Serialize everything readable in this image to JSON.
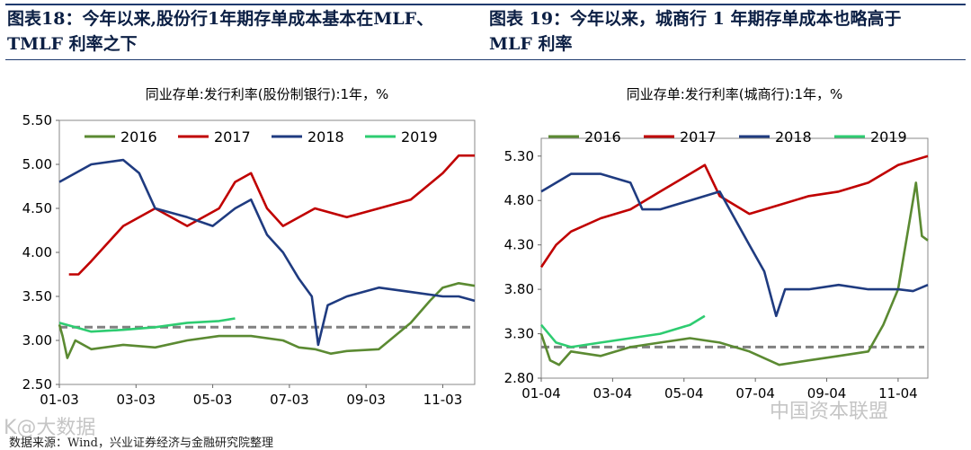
{
  "titles": {
    "left_line1": "图表18：今年以来,股份行1年期存单成本基本在MLF、",
    "left_line2": "TMLF 利率之下",
    "right_line1": "图表 19：今年以来，城商行 1 年期存单成本也略高于",
    "right_line2": "MLF 利率"
  },
  "source": "数据来源：Wind，兴业证券经济与金融研究院整理",
  "watermarks": {
    "left": "K@大数据",
    "right": "中国资本联盟"
  },
  "colors": {
    "s2016": "#5b8a32",
    "s2017": "#c00000",
    "s2018": "#1f3b80",
    "s2019": "#2ecc71",
    "ref": "#808080",
    "rule": "#1f3a6e"
  },
  "chart_data": [
    {
      "type": "line",
      "title": "同业存单:发行利率(股份制银行):1年，%",
      "xlabels": [
        "01-03",
        "03-03",
        "05-03",
        "07-03",
        "09-03",
        "11-03"
      ],
      "ylim": [
        2.5,
        5.5
      ],
      "yticks": [
        2.5,
        3.0,
        3.5,
        4.0,
        4.5,
        5.0,
        5.5
      ],
      "ytick_labels": [
        "2.50",
        "3.00",
        "3.50",
        "4.00",
        "4.50",
        "5.00",
        "5.50"
      ],
      "reference_line": 3.15,
      "legend_position": "top",
      "series": [
        {
          "name": "2016",
          "color": "#5b8a32",
          "points": [
            [
              0,
              3.18
            ],
            [
              0.1,
              3.05
            ],
            [
              0.25,
              2.8
            ],
            [
              0.5,
              3.0
            ],
            [
              1,
              2.9
            ],
            [
              2,
              2.95
            ],
            [
              3,
              2.92
            ],
            [
              4,
              3.0
            ],
            [
              5,
              3.05
            ],
            [
              6,
              3.05
            ],
            [
              7,
              3.0
            ],
            [
              7.5,
              2.92
            ],
            [
              8,
              2.9
            ],
            [
              8.5,
              2.85
            ],
            [
              9,
              2.88
            ],
            [
              10,
              2.9
            ],
            [
              11,
              3.2
            ],
            [
              11.6,
              3.45
            ],
            [
              12,
              3.6
            ],
            [
              12.5,
              3.65
            ],
            [
              13,
              3.62
            ]
          ]
        },
        {
          "name": "2017",
          "color": "#c00000",
          "points": [
            [
              0.3,
              3.75
            ],
            [
              0.6,
              3.75
            ],
            [
              1,
              3.9
            ],
            [
              2,
              4.3
            ],
            [
              3,
              4.5
            ],
            [
              4,
              4.3
            ],
            [
              5,
              4.5
            ],
            [
              5.5,
              4.8
            ],
            [
              6,
              4.9
            ],
            [
              6.5,
              4.5
            ],
            [
              7,
              4.3
            ],
            [
              8,
              4.5
            ],
            [
              9,
              4.4
            ],
            [
              10,
              4.5
            ],
            [
              11,
              4.6
            ],
            [
              12,
              4.9
            ],
            [
              12.5,
              5.1
            ],
            [
              13,
              5.1
            ]
          ]
        },
        {
          "name": "2018",
          "color": "#1f3b80",
          "points": [
            [
              0,
              4.8
            ],
            [
              1,
              5.0
            ],
            [
              2,
              5.05
            ],
            [
              2.5,
              4.9
            ],
            [
              3,
              4.5
            ],
            [
              4,
              4.4
            ],
            [
              4.8,
              4.3
            ],
            [
              5.5,
              4.5
            ],
            [
              6,
              4.6
            ],
            [
              6.5,
              4.2
            ],
            [
              7,
              4.0
            ],
            [
              7.5,
              3.7
            ],
            [
              7.9,
              3.5
            ],
            [
              8.1,
              2.95
            ],
            [
              8.4,
              3.4
            ],
            [
              9,
              3.5
            ],
            [
              10,
              3.6
            ],
            [
              11,
              3.55
            ],
            [
              12,
              3.5
            ],
            [
              12.5,
              3.5
            ],
            [
              13,
              3.45
            ]
          ]
        },
        {
          "name": "2019",
          "color": "#2ecc71",
          "points": [
            [
              0,
              3.2
            ],
            [
              0.5,
              3.15
            ],
            [
              1,
              3.1
            ],
            [
              2,
              3.12
            ],
            [
              3,
              3.15
            ],
            [
              4,
              3.2
            ],
            [
              5,
              3.22
            ],
            [
              5.5,
              3.25
            ]
          ]
        }
      ]
    },
    {
      "type": "line",
      "title": "同业存单:发行利率(城商行):1年，%",
      "xlabels": [
        "01-04",
        "03-04",
        "05-04",
        "07-04",
        "09-04",
        "11-04"
      ],
      "ylim": [
        2.8,
        5.5
      ],
      "yticks": [
        2.8,
        3.3,
        3.8,
        4.3,
        4.8,
        5.3
      ],
      "ytick_labels": [
        "2.80",
        "3.30",
        "3.80",
        "4.30",
        "4.80",
        "5.30"
      ],
      "reference_line": 3.15,
      "legend_position": "top",
      "series": [
        {
          "name": "2016",
          "color": "#5b8a32",
          "points": [
            [
              0,
              3.3
            ],
            [
              0.3,
              3.0
            ],
            [
              0.6,
              2.95
            ],
            [
              1,
              3.1
            ],
            [
              2,
              3.05
            ],
            [
              3,
              3.15
            ],
            [
              4,
              3.2
            ],
            [
              5,
              3.25
            ],
            [
              6,
              3.2
            ],
            [
              7,
              3.1
            ],
            [
              8,
              2.95
            ],
            [
              9,
              3.0
            ],
            [
              10,
              3.05
            ],
            [
              11,
              3.1
            ],
            [
              11.5,
              3.4
            ],
            [
              12,
              3.8
            ],
            [
              12.4,
              4.6
            ],
            [
              12.6,
              5.0
            ],
            [
              12.8,
              4.4
            ],
            [
              13,
              4.35
            ]
          ]
        },
        {
          "name": "2017",
          "color": "#c00000",
          "points": [
            [
              0,
              4.05
            ],
            [
              0.5,
              4.3
            ],
            [
              1,
              4.45
            ],
            [
              2,
              4.6
            ],
            [
              3,
              4.7
            ],
            [
              4,
              4.9
            ],
            [
              5,
              5.1
            ],
            [
              5.5,
              5.2
            ],
            [
              6,
              4.85
            ],
            [
              7,
              4.65
            ],
            [
              8,
              4.75
            ],
            [
              9,
              4.85
            ],
            [
              10,
              4.9
            ],
            [
              11,
              5.0
            ],
            [
              12,
              5.2
            ],
            [
              12.5,
              5.25
            ],
            [
              13,
              5.3
            ]
          ]
        },
        {
          "name": "2018",
          "color": "#1f3b80",
          "points": [
            [
              0,
              4.9
            ],
            [
              1,
              5.1
            ],
            [
              2,
              5.1
            ],
            [
              3,
              5.0
            ],
            [
              3.4,
              4.7
            ],
            [
              4,
              4.7
            ],
            [
              5,
              4.8
            ],
            [
              6,
              4.9
            ],
            [
              6.5,
              4.6
            ],
            [
              7,
              4.3
            ],
            [
              7.5,
              4.0
            ],
            [
              7.9,
              3.5
            ],
            [
              8.2,
              3.8
            ],
            [
              9,
              3.8
            ],
            [
              10,
              3.85
            ],
            [
              11,
              3.8
            ],
            [
              12,
              3.8
            ],
            [
              12.5,
              3.78
            ],
            [
              13,
              3.85
            ]
          ]
        },
        {
          "name": "2019",
          "color": "#2ecc71",
          "points": [
            [
              0,
              3.4
            ],
            [
              0.5,
              3.2
            ],
            [
              1,
              3.15
            ],
            [
              2,
              3.2
            ],
            [
              3,
              3.25
            ],
            [
              4,
              3.3
            ],
            [
              5,
              3.4
            ],
            [
              5.5,
              3.5
            ]
          ]
        }
      ]
    }
  ]
}
